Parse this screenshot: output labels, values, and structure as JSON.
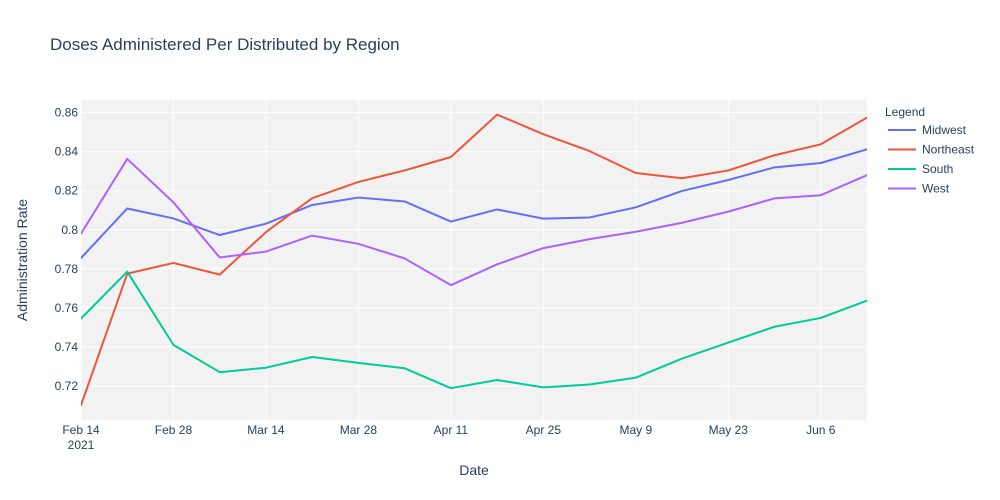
{
  "chart_data": {
    "type": "line",
    "title": "Doses Administered Per Distributed by Region",
    "xlabel": "Date",
    "ylabel": "Administration Rate",
    "x": [
      "2021-02-14",
      "2021-02-21",
      "2021-02-28",
      "2021-03-07",
      "2021-03-14",
      "2021-03-21",
      "2021-03-28",
      "2021-04-04",
      "2021-04-11",
      "2021-04-18",
      "2021-04-25",
      "2021-05-02",
      "2021-05-09",
      "2021-05-16",
      "2021-05-23",
      "2021-05-30",
      "2021-06-06",
      "2021-06-13"
    ],
    "x_ticks": [
      {
        "date": "2021-02-14",
        "label": "Feb 14",
        "sublabel": "2021"
      },
      {
        "date": "2021-02-28",
        "label": "Feb 28",
        "sublabel": ""
      },
      {
        "date": "2021-03-14",
        "label": "Mar 14",
        "sublabel": ""
      },
      {
        "date": "2021-03-28",
        "label": "Mar 28",
        "sublabel": ""
      },
      {
        "date": "2021-04-11",
        "label": "Apr 11",
        "sublabel": ""
      },
      {
        "date": "2021-04-25",
        "label": "Apr 25",
        "sublabel": ""
      },
      {
        "date": "2021-05-09",
        "label": "May 9",
        "sublabel": ""
      },
      {
        "date": "2021-05-23",
        "label": "May 23",
        "sublabel": ""
      },
      {
        "date": "2021-06-06",
        "label": "Jun 6",
        "sublabel": ""
      }
    ],
    "y_ticks": [
      {
        "value": 0.72,
        "label": "0.72"
      },
      {
        "value": 0.74,
        "label": "0.74"
      },
      {
        "value": 0.76,
        "label": "0.76"
      },
      {
        "value": 0.78,
        "label": "0.78"
      },
      {
        "value": 0.8,
        "label": "0.8"
      },
      {
        "value": 0.82,
        "label": "0.82"
      },
      {
        "value": 0.84,
        "label": "0.84"
      },
      {
        "value": 0.86,
        "label": "0.86"
      }
    ],
    "ylim": [
      0.7025,
      0.8665
    ],
    "grid": true,
    "legend": {
      "title": "Legend",
      "placement": "right"
    },
    "series": [
      {
        "name": "Midwest",
        "color": "#636efa",
        "values": [
          0.7855,
          0.8109,
          0.8058,
          0.7973,
          0.8031,
          0.8127,
          0.8165,
          0.8145,
          0.8042,
          0.8104,
          0.8057,
          0.8063,
          0.8115,
          0.8199,
          0.8255,
          0.832,
          0.8342,
          0.8412
        ]
      },
      {
        "name": "Northeast",
        "color": "#ef553b",
        "values": [
          0.7101,
          0.7775,
          0.783,
          0.777,
          0.7988,
          0.8162,
          0.8245,
          0.8304,
          0.8373,
          0.859,
          0.849,
          0.8403,
          0.8291,
          0.8264,
          0.8304,
          0.8382,
          0.8438,
          0.8575
        ]
      },
      {
        "name": "South",
        "color": "#00cc96",
        "values": [
          0.7545,
          0.7785,
          0.741,
          0.727,
          0.7293,
          0.7348,
          0.7318,
          0.729,
          0.7188,
          0.723,
          0.7192,
          0.7207,
          0.7242,
          0.734,
          0.7422,
          0.7503,
          0.7548,
          0.7637
        ]
      },
      {
        "name": "West",
        "color": "#ab63fa",
        "values": [
          0.798,
          0.8363,
          0.814,
          0.7858,
          0.7888,
          0.797,
          0.7928,
          0.7853,
          0.7716,
          0.7823,
          0.7906,
          0.7952,
          0.799,
          0.8036,
          0.8093,
          0.8161,
          0.8177,
          0.828
        ]
      }
    ]
  }
}
